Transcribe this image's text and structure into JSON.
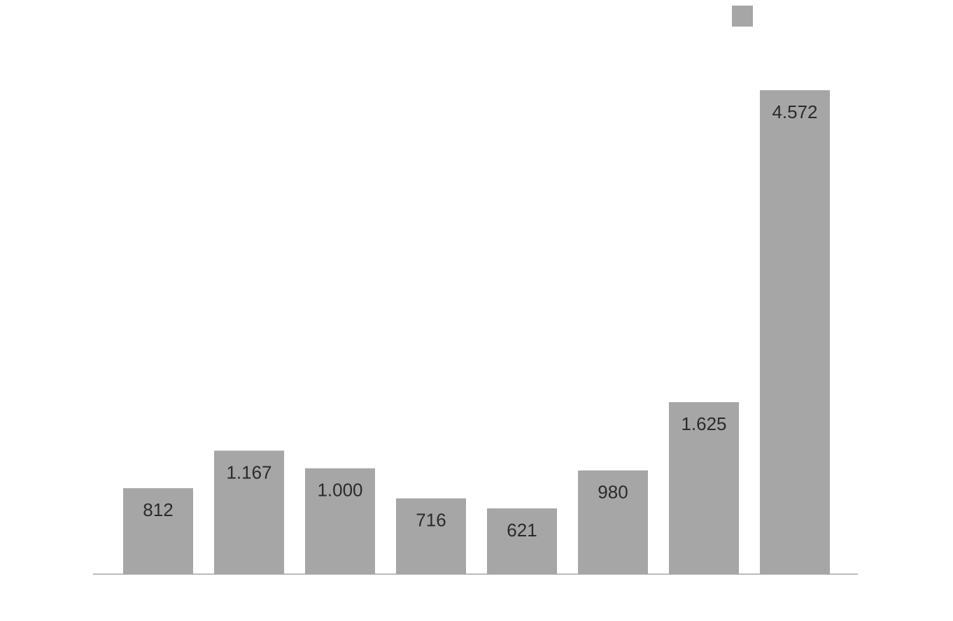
{
  "chart_data": {
    "type": "bar",
    "categories": [
      "",
      "",
      "",
      "",
      "",
      "",
      "",
      ""
    ],
    "series": [
      {
        "values": [
          812,
          1167,
          1000,
          716,
          621,
          980,
          1625,
          4572
        ],
        "labels": [
          "812",
          "1.167",
          "1.000",
          "716",
          "621",
          "980",
          "1.625",
          "4.572"
        ]
      }
    ],
    "ylim": [
      0,
      4572
    ],
    "grid": false,
    "legend": "top-right",
    "bar_color": "#a6a6a6",
    "label_color": "#2b2b2b",
    "axis_color": "#a6a6a6",
    "label_position": "inside-top"
  }
}
